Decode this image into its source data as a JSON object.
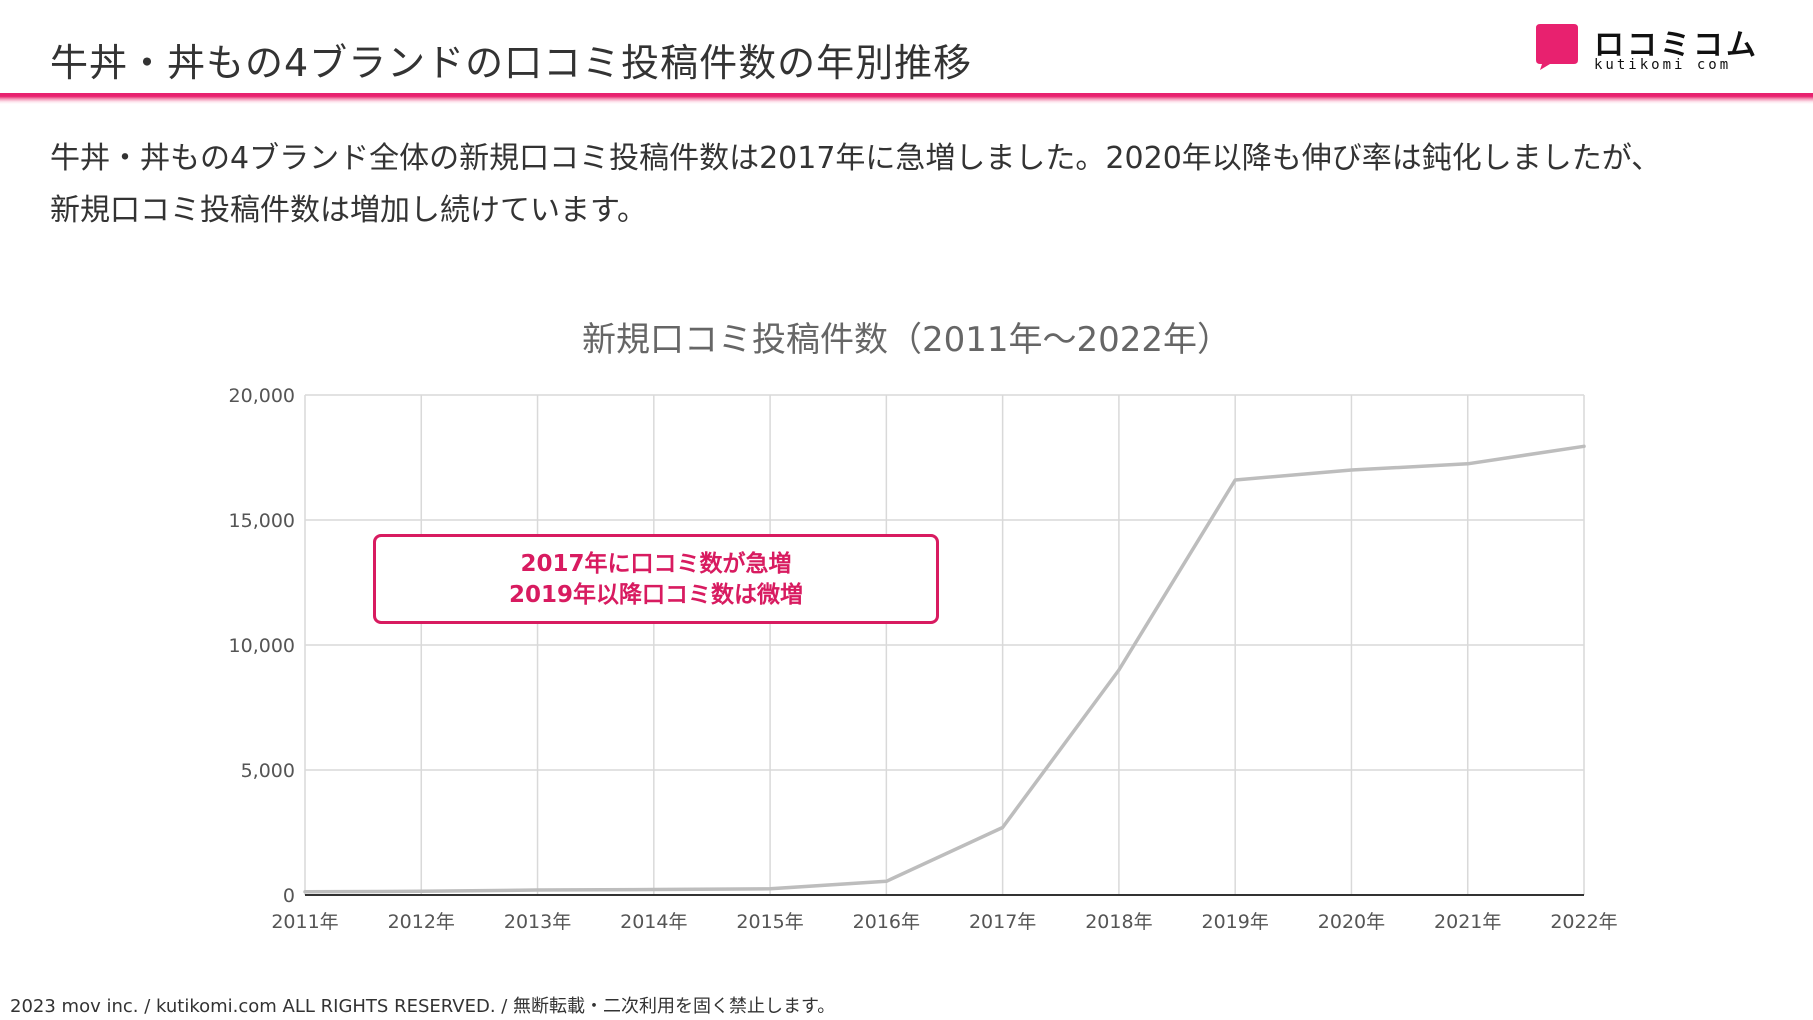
{
  "header": {
    "title": "牛丼・丼もの4ブランドの口コミ投稿件数の年別推移",
    "logo_text": "ロコミコム",
    "logo_sub": "kutikomi com",
    "accent": "#e8216f"
  },
  "summary": {
    "line1": "牛丼・丼もの4ブランド全体の新規口コミ投稿件数は2017年に急増しました。2020年以降も伸び率は鈍化しましたが、",
    "line2": "新規口コミ投稿件数は増加し続けています。"
  },
  "callout": {
    "line1": "2017年に口コミ数が急増",
    "line2": "2019年以降口コミ数は微増",
    "color": "#d81b60"
  },
  "chart_data": {
    "type": "line",
    "title": "新規口コミ投稿件数（2011年～2022年）",
    "categories": [
      "2011年",
      "2012年",
      "2013年",
      "2014年",
      "2015年",
      "2016年",
      "2017年",
      "2018年",
      "2019年",
      "2020年",
      "2021年",
      "2022年"
    ],
    "series": [
      {
        "values": [
          130,
          150,
          200,
          220,
          250,
          550,
          2700,
          9000,
          16600,
          17000,
          17250,
          17950
        ],
        "color": "#bdbdbd"
      }
    ],
    "ylim": [
      0,
      20000
    ],
    "yticks": [
      0,
      5000,
      10000,
      15000,
      20000
    ],
    "ytick_labels": [
      "0",
      "5,000",
      "10,000",
      "15,000",
      "20,000"
    ],
    "grid": true,
    "xlabel": "",
    "ylabel": ""
  },
  "footer": {
    "text": "2023 mov inc. / kutikomi.com ALL RIGHTS RESERVED. / 無断転載・二次利用を固く禁止します。"
  }
}
